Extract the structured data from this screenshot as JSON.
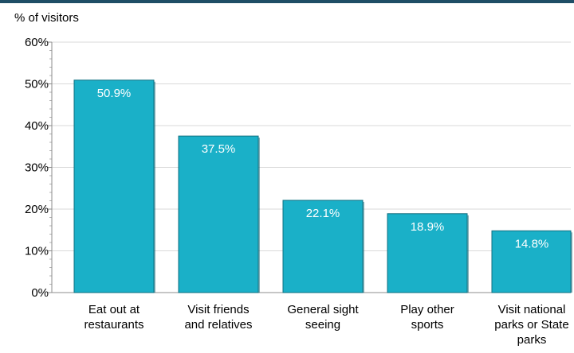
{
  "chart_data": {
    "type": "bar",
    "ylabel": "% of visitors",
    "ylim": [
      0,
      60
    ],
    "yticks": [
      "0%",
      "10%",
      "20%",
      "30%",
      "40%",
      "50%",
      "60%"
    ],
    "categories": [
      [
        "Eat out at",
        "restaurants"
      ],
      [
        "Visit friends",
        "and relatives"
      ],
      [
        "General sight",
        "seeing"
      ],
      [
        "Play other",
        "sports"
      ],
      [
        "Visit national",
        "parks or State",
        "parks"
      ]
    ],
    "values": [
      50.9,
      37.5,
      22.1,
      18.9,
      14.8
    ],
    "data_labels": [
      "50.9%",
      "37.5%",
      "22.1%",
      "18.9%",
      "14.8%"
    ],
    "grid": true,
    "bar_color": "#1ab0c8",
    "bar_edge_color": "#0f6f80",
    "label_color": "#ffffff"
  }
}
